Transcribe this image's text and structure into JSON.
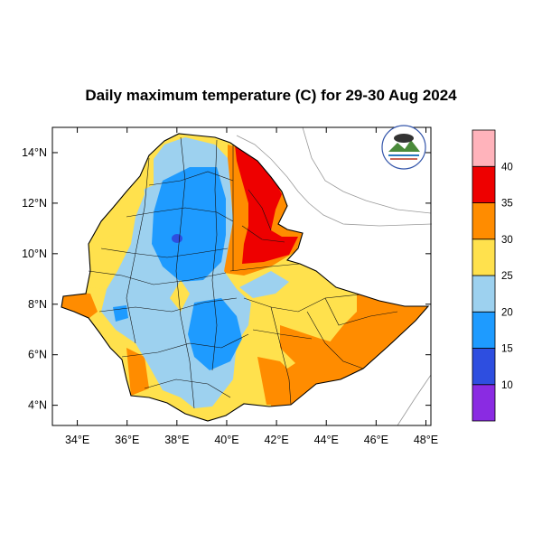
{
  "map": {
    "title": "Daily maximum temperature (C) for 29-30 Aug 2024",
    "lon_ticks": [
      "34°E",
      "36°E",
      "38°E",
      "40°E",
      "42°E",
      "44°E",
      "46°E",
      "48°E"
    ],
    "lat_ticks": [
      "14°N",
      "12°N",
      "10°N",
      "8°N",
      "6°N",
      "4°N"
    ],
    "lon_range": [
      33,
      48.2
    ],
    "lat_range": [
      3.2,
      15
    ],
    "logo_icon": "ethiopian-meteorology-institute-logo"
  },
  "colorbar": {
    "labels": [
      "10",
      "15",
      "20",
      "25",
      "30",
      "35",
      "40"
    ],
    "bins": [
      {
        "range": "<10",
        "color": "#8a2be2"
      },
      {
        "range": "10-15",
        "color": "#2e4ee0"
      },
      {
        "range": "15-20",
        "color": "#1e9bff"
      },
      {
        "range": "20-25",
        "color": "#9dd1ef"
      },
      {
        "range": "25-30",
        "color": "#ffe14d"
      },
      {
        "range": "30-35",
        "color": "#ff8c00"
      },
      {
        "range": "35-40",
        "color": "#ee0000"
      },
      {
        "range": ">40",
        "color": "#ffb3bb"
      }
    ]
  }
}
